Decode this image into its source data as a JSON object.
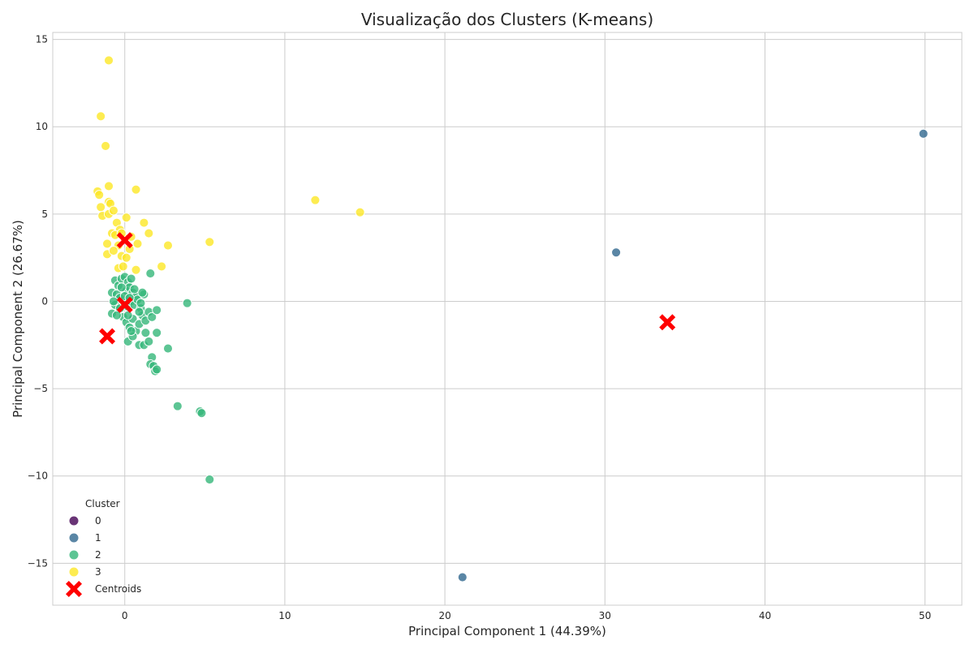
{
  "chart_data": {
    "type": "scatter",
    "title": "Visualização dos Clusters (K-means)",
    "xlabel": "Principal Component 1 (44.39%)",
    "ylabel": "Principal Component 2 (26.67%)",
    "xlim": [
      -4.5,
      52.3
    ],
    "ylim": [
      -17.4,
      15.4
    ],
    "xticks": [
      0,
      10,
      20,
      30,
      40,
      50
    ],
    "yticks": [
      -15,
      -10,
      -5,
      0,
      5,
      10,
      15
    ],
    "xtick_labels": [
      "0",
      "10",
      "20",
      "30",
      "40",
      "50"
    ],
    "ytick_labels": [
      "−15",
      "−10",
      "−5",
      "0",
      "5",
      "10",
      "15"
    ],
    "grid": true,
    "legend": {
      "title": "Cluster",
      "placement": "bottom-left"
    },
    "series": [
      {
        "name": "0",
        "color": "#440154",
        "points": []
      },
      {
        "name": "1",
        "color": "#31688e",
        "points": [
          [
            49.9,
            9.6
          ],
          [
            30.7,
            2.8
          ],
          [
            21.1,
            -15.8
          ]
        ]
      },
      {
        "name": "2",
        "color": "#35b779",
        "points": [
          [
            -0.6,
            1.2
          ],
          [
            -0.4,
            0.9
          ],
          [
            -0.2,
            1.3
          ],
          [
            0.0,
            1.4
          ],
          [
            0.2,
            1.1
          ],
          [
            0.4,
            1.3
          ],
          [
            -0.8,
            0.5
          ],
          [
            -0.5,
            0.4
          ],
          [
            -0.3,
            0.2
          ],
          [
            0.1,
            0.6
          ],
          [
            0.3,
            0.8
          ],
          [
            0.5,
            0.5
          ],
          [
            0.7,
            0.3
          ],
          [
            -0.6,
            -0.2
          ],
          [
            -0.3,
            -0.4
          ],
          [
            0.0,
            -0.1
          ],
          [
            0.2,
            -0.3
          ],
          [
            0.4,
            0.0
          ],
          [
            0.6,
            -0.2
          ],
          [
            0.8,
            0.1
          ],
          [
            1.0,
            -0.4
          ],
          [
            1.2,
            0.4
          ],
          [
            1.1,
            0.5
          ],
          [
            -0.1,
            -0.9
          ],
          [
            0.1,
            -1.2
          ],
          [
            0.3,
            -1.5
          ],
          [
            0.5,
            -1.0
          ],
          [
            0.7,
            -1.7
          ],
          [
            0.9,
            -1.3
          ],
          [
            1.1,
            -0.8
          ],
          [
            1.3,
            -1.1
          ],
          [
            1.5,
            -0.6
          ],
          [
            1.7,
            -0.9
          ],
          [
            1.6,
            1.6
          ],
          [
            2.0,
            -0.5
          ],
          [
            0.2,
            -2.3
          ],
          [
            0.5,
            -2.0
          ],
          [
            0.9,
            -2.5
          ],
          [
            1.2,
            -2.5
          ],
          [
            1.5,
            -2.3
          ],
          [
            1.3,
            -1.8
          ],
          [
            2.0,
            -1.8
          ],
          [
            2.7,
            -2.7
          ],
          [
            1.7,
            -3.2
          ],
          [
            1.6,
            -3.6
          ],
          [
            1.8,
            -3.7
          ],
          [
            1.9,
            -4.0
          ],
          [
            2.0,
            -3.9
          ],
          [
            3.9,
            -0.1
          ],
          [
            3.3,
            -6.0
          ],
          [
            4.7,
            -6.3
          ],
          [
            4.8,
            -6.4
          ],
          [
            5.3,
            -10.2
          ],
          [
            -0.8,
            -0.7
          ],
          [
            -0.5,
            -0.8
          ],
          [
            -0.2,
            0.8
          ],
          [
            0.0,
            0.3
          ],
          [
            0.3,
            0.2
          ],
          [
            0.6,
            0.7
          ],
          [
            0.9,
            -0.6
          ],
          [
            -0.7,
            0.0
          ],
          [
            0.2,
            -0.8
          ],
          [
            0.4,
            -1.7
          ],
          [
            1.0,
            -0.1
          ]
        ]
      },
      {
        "name": "3",
        "color": "#fde725",
        "points": [
          [
            -1.0,
            13.8
          ],
          [
            -1.5,
            10.6
          ],
          [
            -1.2,
            8.9
          ],
          [
            -1.7,
            6.3
          ],
          [
            -1.6,
            6.1
          ],
          [
            -1.0,
            6.6
          ],
          [
            -1.0,
            5.7
          ],
          [
            -0.9,
            5.6
          ],
          [
            -1.5,
            5.4
          ],
          [
            -1.4,
            4.9
          ],
          [
            -1.0,
            5.0
          ],
          [
            -0.7,
            5.2
          ],
          [
            0.7,
            6.4
          ],
          [
            0.1,
            4.8
          ],
          [
            1.2,
            4.5
          ],
          [
            1.5,
            3.9
          ],
          [
            -0.5,
            4.5
          ],
          [
            -0.3,
            4.1
          ],
          [
            -0.8,
            3.9
          ],
          [
            -0.6,
            3.8
          ],
          [
            0.0,
            3.6
          ],
          [
            0.4,
            3.7
          ],
          [
            -1.1,
            3.3
          ],
          [
            -0.4,
            3.2
          ],
          [
            0.8,
            3.3
          ],
          [
            -1.1,
            2.7
          ],
          [
            -0.7,
            2.9
          ],
          [
            -0.2,
            2.6
          ],
          [
            0.1,
            2.5
          ],
          [
            0.3,
            3.0
          ],
          [
            -0.4,
            1.9
          ],
          [
            -0.1,
            2.0
          ],
          [
            0.7,
            1.8
          ],
          [
            2.3,
            2.0
          ],
          [
            2.7,
            3.2
          ],
          [
            5.3,
            3.4
          ],
          [
            11.9,
            5.8
          ],
          [
            14.7,
            5.1
          ],
          [
            -0.2,
            3.9
          ]
        ]
      }
    ],
    "centroids": {
      "name": "Centroids",
      "color": "#ff0000",
      "points": [
        [
          0.0,
          3.5
        ],
        [
          0.0,
          -0.2
        ],
        [
          -1.1,
          -2.0
        ],
        [
          33.9,
          -1.2
        ]
      ]
    }
  }
}
